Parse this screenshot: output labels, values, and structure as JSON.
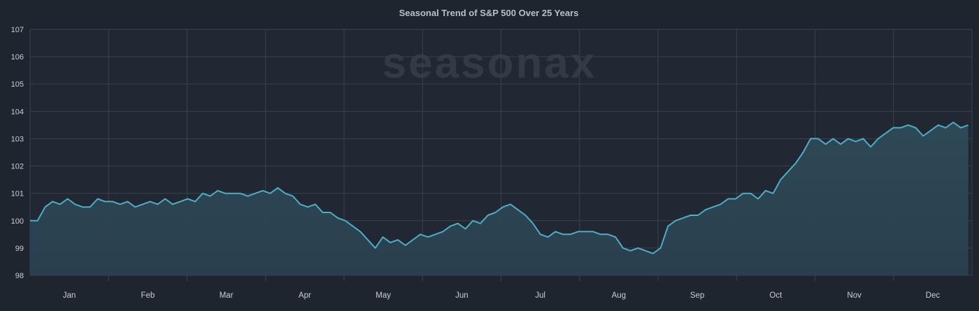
{
  "chart_data": {
    "type": "area",
    "title": "Seasonal Trend of S&P 500 Over 25 Years",
    "watermark": "seasonax",
    "xlabel": "",
    "ylabel": "",
    "ylim": [
      98,
      107
    ],
    "yticks": [
      "98",
      "99",
      "100",
      "101",
      "102",
      "103",
      "104",
      "105",
      "106",
      "107"
    ],
    "months": [
      "Jan",
      "Feb",
      "Mar",
      "Apr",
      "May",
      "Jun",
      "Jul",
      "Aug",
      "Sep",
      "Oct",
      "Nov",
      "Dec"
    ],
    "grid": true,
    "legend": "none",
    "colors": {
      "background": "#1f252f",
      "plot_background": "#212834",
      "line": "#4eaec4",
      "fill_top": "#2f4c5a",
      "fill_bottom": "#2a3f4d",
      "grid": "#3a414c"
    },
    "series": [
      {
        "name": "S&P 500 seasonal trend",
        "x_unit": "trading day of year (0-251)",
        "points": [
          [
            0,
            100.0
          ],
          [
            2,
            100.0
          ],
          [
            4,
            100.5
          ],
          [
            6,
            100.7
          ],
          [
            8,
            100.6
          ],
          [
            10,
            100.8
          ],
          [
            12,
            100.6
          ],
          [
            14,
            100.5
          ],
          [
            16,
            100.5
          ],
          [
            18,
            100.8
          ],
          [
            20,
            100.7
          ],
          [
            22,
            100.7
          ],
          [
            24,
            100.6
          ],
          [
            26,
            100.7
          ],
          [
            28,
            100.5
          ],
          [
            30,
            100.6
          ],
          [
            32,
            100.7
          ],
          [
            34,
            100.6
          ],
          [
            36,
            100.8
          ],
          [
            38,
            100.6
          ],
          [
            40,
            100.7
          ],
          [
            42,
            100.8
          ],
          [
            44,
            100.7
          ],
          [
            46,
            101.0
          ],
          [
            48,
            100.9
          ],
          [
            50,
            101.1
          ],
          [
            52,
            101.0
          ],
          [
            54,
            101.0
          ],
          [
            56,
            101.0
          ],
          [
            58,
            100.9
          ],
          [
            60,
            101.0
          ],
          [
            62,
            101.1
          ],
          [
            64,
            101.0
          ],
          [
            66,
            101.2
          ],
          [
            68,
            101.0
          ],
          [
            70,
            100.9
          ],
          [
            72,
            100.6
          ],
          [
            74,
            100.5
          ],
          [
            76,
            100.6
          ],
          [
            78,
            100.3
          ],
          [
            80,
            100.3
          ],
          [
            82,
            100.1
          ],
          [
            84,
            100.0
          ],
          [
            86,
            99.8
          ],
          [
            88,
            99.6
          ],
          [
            90,
            99.3
          ],
          [
            92,
            99.0
          ],
          [
            94,
            99.4
          ],
          [
            96,
            99.2
          ],
          [
            98,
            99.3
          ],
          [
            100,
            99.1
          ],
          [
            102,
            99.3
          ],
          [
            104,
            99.5
          ],
          [
            106,
            99.4
          ],
          [
            108,
            99.5
          ],
          [
            110,
            99.6
          ],
          [
            112,
            99.8
          ],
          [
            114,
            99.9
          ],
          [
            116,
            99.7
          ],
          [
            118,
            100.0
          ],
          [
            120,
            99.9
          ],
          [
            122,
            100.2
          ],
          [
            124,
            100.3
          ],
          [
            126,
            100.5
          ],
          [
            128,
            100.6
          ],
          [
            130,
            100.4
          ],
          [
            132,
            100.2
          ],
          [
            134,
            99.9
          ],
          [
            136,
            99.5
          ],
          [
            138,
            99.4
          ],
          [
            140,
            99.6
          ],
          [
            142,
            99.5
          ],
          [
            144,
            99.5
          ],
          [
            146,
            99.6
          ],
          [
            148,
            99.6
          ],
          [
            150,
            99.6
          ],
          [
            152,
            99.5
          ],
          [
            154,
            99.5
          ],
          [
            156,
            99.4
          ],
          [
            158,
            99.0
          ],
          [
            160,
            98.9
          ],
          [
            162,
            99.0
          ],
          [
            164,
            98.9
          ],
          [
            166,
            98.8
          ],
          [
            168,
            99.0
          ],
          [
            170,
            99.8
          ],
          [
            172,
            100.0
          ],
          [
            174,
            100.1
          ],
          [
            176,
            100.2
          ],
          [
            178,
            100.2
          ],
          [
            180,
            100.4
          ],
          [
            182,
            100.5
          ],
          [
            184,
            100.6
          ],
          [
            186,
            100.8
          ],
          [
            188,
            100.8
          ],
          [
            190,
            101.0
          ],
          [
            192,
            101.0
          ],
          [
            194,
            100.8
          ],
          [
            196,
            101.1
          ],
          [
            198,
            101.0
          ],
          [
            200,
            101.5
          ],
          [
            202,
            101.8
          ],
          [
            204,
            102.1
          ],
          [
            206,
            102.5
          ],
          [
            208,
            103.0
          ],
          [
            210,
            103.0
          ],
          [
            212,
            102.8
          ],
          [
            214,
            103.0
          ],
          [
            216,
            102.8
          ],
          [
            218,
            103.0
          ],
          [
            220,
            102.9
          ],
          [
            222,
            103.0
          ],
          [
            224,
            102.7
          ],
          [
            226,
            103.0
          ],
          [
            228,
            103.2
          ],
          [
            230,
            103.4
          ],
          [
            232,
            103.4
          ],
          [
            234,
            103.5
          ],
          [
            236,
            103.4
          ],
          [
            238,
            103.1
          ],
          [
            240,
            103.3
          ],
          [
            242,
            103.5
          ],
          [
            244,
            103.4
          ],
          [
            246,
            103.6
          ],
          [
            248,
            103.4
          ],
          [
            250,
            103.5
          ]
        ]
      }
    ]
  }
}
